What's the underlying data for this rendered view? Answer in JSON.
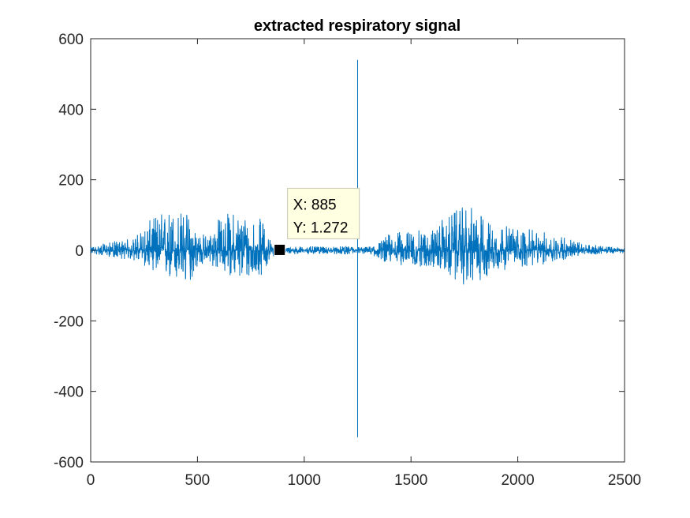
{
  "chart_data": {
    "type": "line",
    "title": "extracted respiratory signal",
    "xlabel": "",
    "ylabel": "",
    "xlim": [
      0,
      2500
    ],
    "ylim": [
      -600,
      600
    ],
    "x_ticks": [
      0,
      500,
      1000,
      1500,
      2000,
      2500
    ],
    "y_ticks": [
      -600,
      -400,
      -200,
      0,
      200,
      400,
      600
    ],
    "x_tick_labels": [
      "0",
      "500",
      "1000",
      "1500",
      "2000",
      "2500"
    ],
    "y_tick_labels": [
      "-600",
      "-400",
      "-200",
      "0",
      "200",
      "400",
      "600"
    ],
    "grid": false,
    "legend": "none",
    "colors": {
      "series": "#0072bd",
      "axes": "#262626",
      "datatip_bg": "#ffffe1"
    },
    "series": [
      {
        "color": "#0072bd",
        "envelope": [
          {
            "x": 0,
            "max": 10,
            "min": -10
          },
          {
            "x": 100,
            "max": 25,
            "min": -20
          },
          {
            "x": 200,
            "max": 35,
            "min": -30
          },
          {
            "x": 300,
            "max": 100,
            "min": -60
          },
          {
            "x": 350,
            "max": 115,
            "min": -85
          },
          {
            "x": 400,
            "max": 118,
            "min": -95
          },
          {
            "x": 450,
            "max": 110,
            "min": -110
          },
          {
            "x": 500,
            "max": 60,
            "min": -50
          },
          {
            "x": 550,
            "max": 40,
            "min": -40
          },
          {
            "x": 600,
            "max": 95,
            "min": -60
          },
          {
            "x": 650,
            "max": 110,
            "min": -70
          },
          {
            "x": 700,
            "max": 110,
            "min": -90
          },
          {
            "x": 750,
            "max": 100,
            "min": -85
          },
          {
            "x": 800,
            "max": 90,
            "min": -70
          },
          {
            "x": 850,
            "max": 20,
            "min": -20
          },
          {
            "x": 900,
            "max": 10,
            "min": -10
          },
          {
            "x": 1000,
            "max": 12,
            "min": -12
          },
          {
            "x": 1100,
            "max": 10,
            "min": -10
          },
          {
            "x": 1200,
            "max": 12,
            "min": -12
          },
          {
            "x": 1300,
            "max": 10,
            "min": -10
          },
          {
            "x": 1350,
            "max": 25,
            "min": -25
          },
          {
            "x": 1400,
            "max": 50,
            "min": -40
          },
          {
            "x": 1500,
            "max": 55,
            "min": -45
          },
          {
            "x": 1600,
            "max": 60,
            "min": -50
          },
          {
            "x": 1650,
            "max": 90,
            "min": -60
          },
          {
            "x": 1700,
            "max": 110,
            "min": -85
          },
          {
            "x": 1750,
            "max": 125,
            "min": -100
          },
          {
            "x": 1800,
            "max": 120,
            "min": -95
          },
          {
            "x": 1850,
            "max": 90,
            "min": -80
          },
          {
            "x": 1900,
            "max": 75,
            "min": -60
          },
          {
            "x": 2000,
            "max": 65,
            "min": -50
          },
          {
            "x": 2100,
            "max": 55,
            "min": -45
          },
          {
            "x": 2200,
            "max": 45,
            "min": -30
          },
          {
            "x": 2300,
            "max": 20,
            "min": -15
          },
          {
            "x": 2400,
            "max": 12,
            "min": -10
          },
          {
            "x": 2500,
            "max": 8,
            "min": -8
          }
        ],
        "spike": {
          "x": 1250,
          "max": 540,
          "min": -530
        }
      }
    ],
    "datatip": {
      "x": 885,
      "y": 1.272,
      "x_text": "X: 885",
      "y_text": "Y: 1.272"
    }
  }
}
